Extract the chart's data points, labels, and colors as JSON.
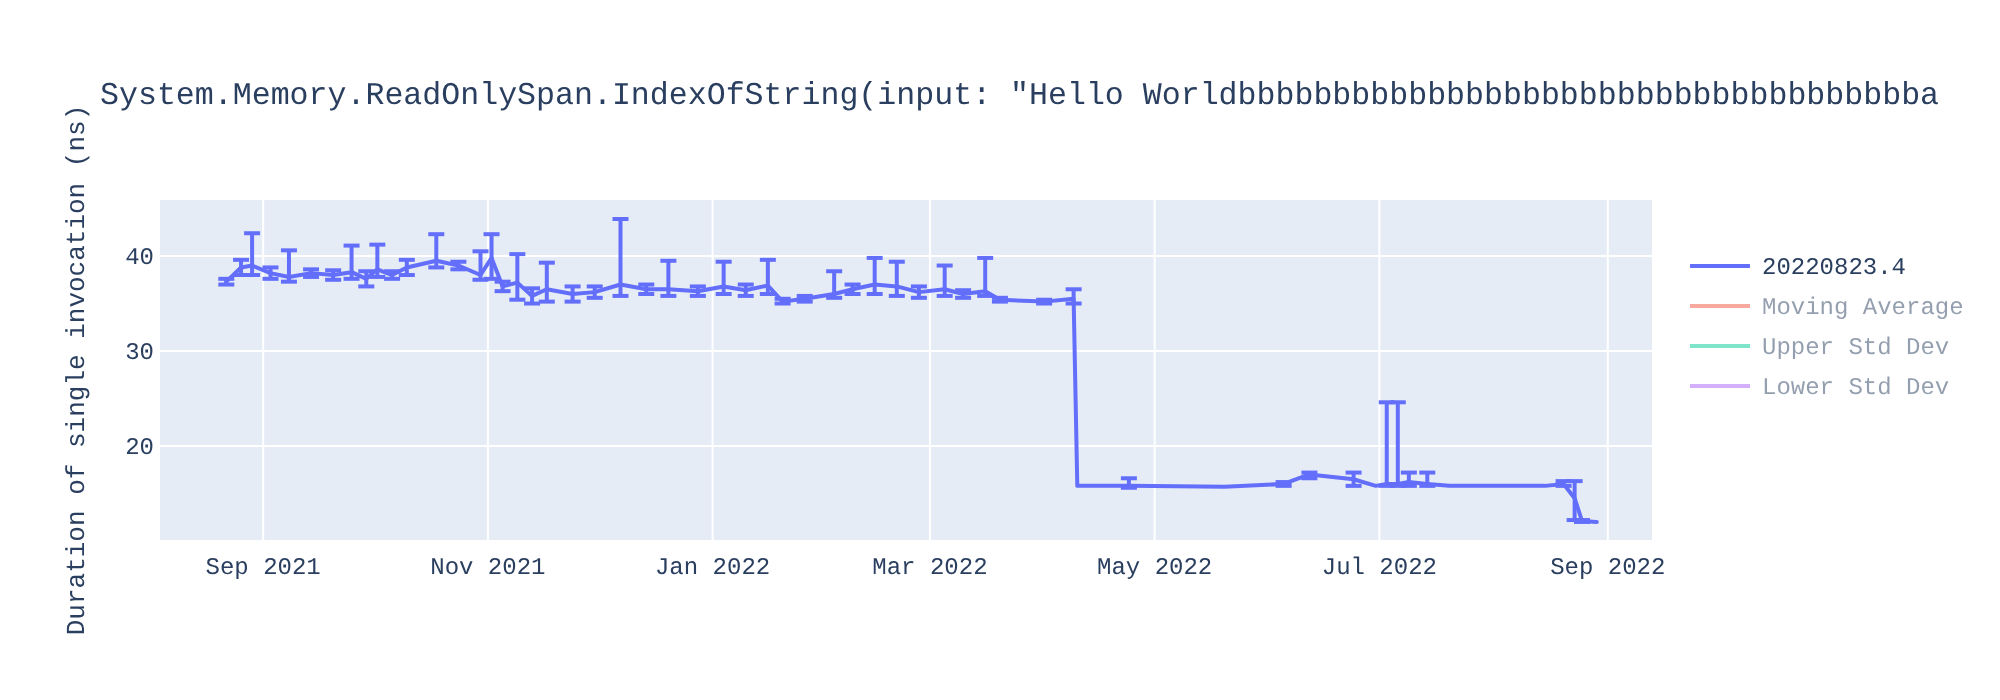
{
  "chart_data": {
    "type": "line",
    "title": "System.Memory.ReadOnlySpan.IndexOfString(input: \"Hello Worldbbbbbbbbbbbbbbbbbbbbbbbbbbbbbbbbbbbba",
    "ylabel": "Duration of single invocation (ns)",
    "x": [
      "2021-08-22",
      "2021-08-26",
      "2021-08-29",
      "2021-09-03",
      "2021-09-08",
      "2021-09-14",
      "2021-09-20",
      "2021-09-25",
      "2021-09-29",
      "2021-10-02",
      "2021-10-06",
      "2021-10-10",
      "2021-10-18",
      "2021-10-24",
      "2021-10-30",
      "2021-11-02",
      "2021-11-05",
      "2021-11-09",
      "2021-11-13",
      "2021-11-17",
      "2021-11-24",
      "2021-11-30",
      "2021-12-07",
      "2021-12-14",
      "2021-12-20",
      "2021-12-28",
      "2022-01-04",
      "2022-01-10",
      "2022-01-16",
      "2022-01-20",
      "2022-01-26",
      "2022-02-03",
      "2022-02-08",
      "2022-02-14",
      "2022-02-20",
      "2022-02-26",
      "2022-03-05",
      "2022-03-10",
      "2022-03-16",
      "2022-03-20",
      "2022-04-01",
      "2022-04-09",
      "2022-04-10",
      "2022-04-24",
      "2022-05-20",
      "2022-06-05",
      "2022-06-12",
      "2022-06-24",
      "2022-06-30",
      "2022-07-03",
      "2022-07-06",
      "2022-07-09",
      "2022-07-14",
      "2022-07-20",
      "2022-08-15",
      "2022-08-20",
      "2022-08-23",
      "2022-08-25",
      "2022-08-29"
    ],
    "series": [
      {
        "name": "20220823.4",
        "color": "#636efa",
        "values": [
          37.3,
          38.8,
          39.0,
          38.2,
          37.8,
          38.2,
          38.0,
          38.3,
          37.6,
          38.6,
          38.0,
          38.8,
          39.5,
          39.0,
          38.0,
          39.8,
          36.8,
          37.2,
          35.8,
          36.5,
          36.0,
          36.2,
          37.0,
          36.5,
          36.5,
          36.3,
          36.8,
          36.4,
          36.9,
          35.2,
          35.5,
          36.0,
          36.5,
          37.0,
          36.8,
          36.2,
          36.5,
          36.0,
          36.3,
          35.4,
          35.2,
          35.5,
          15.8,
          15.8,
          15.7,
          16.0,
          17.0,
          16.5,
          15.8,
          16.0,
          16.0,
          16.2,
          16.0,
          15.8,
          15.8,
          16.0,
          14.5,
          12.1,
          12.0
        ],
        "errors": [
          [
            37.0,
            37.6
          ],
          [
            38.0,
            39.6
          ],
          [
            38.0,
            42.4
          ],
          [
            37.6,
            38.8
          ],
          [
            37.3,
            40.6
          ],
          [
            37.8,
            38.6
          ],
          [
            37.5,
            38.5
          ],
          [
            37.6,
            41.1
          ],
          [
            36.8,
            38.4
          ],
          [
            37.8,
            41.2
          ],
          [
            37.6,
            38.4
          ],
          [
            38.0,
            39.6
          ],
          [
            38.8,
            42.3
          ],
          [
            38.6,
            39.4
          ],
          [
            37.5,
            40.5
          ],
          [
            37.6,
            42.3
          ],
          [
            36.3,
            37.3
          ],
          [
            35.4,
            40.2
          ],
          [
            35.0,
            36.6
          ],
          [
            35.2,
            39.3
          ],
          [
            35.2,
            36.8
          ],
          [
            35.6,
            36.8
          ],
          [
            35.8,
            43.9
          ],
          [
            36.0,
            37.0
          ],
          [
            35.8,
            39.5
          ],
          [
            35.8,
            36.8
          ],
          [
            36.0,
            39.4
          ],
          [
            35.8,
            37.0
          ],
          [
            36.0,
            39.6
          ],
          [
            35.0,
            35.5
          ],
          [
            35.2,
            35.8
          ],
          [
            35.6,
            38.4
          ],
          [
            36.0,
            37.0
          ],
          [
            36.0,
            39.8
          ],
          [
            35.8,
            39.4
          ],
          [
            35.6,
            36.8
          ],
          [
            35.8,
            39.0
          ],
          [
            35.6,
            36.4
          ],
          [
            35.8,
            39.8
          ],
          [
            35.2,
            35.6
          ],
          [
            35.0,
            35.4
          ],
          [
            35.0,
            36.5
          ],
          null,
          [
            15.6,
            16.6
          ],
          null,
          [
            15.8,
            16.2
          ],
          [
            16.6,
            17.2
          ],
          [
            15.8,
            17.2
          ],
          null,
          [
            15.8,
            24.6
          ],
          [
            15.8,
            24.6
          ],
          [
            15.8,
            17.2
          ],
          [
            15.8,
            17.2
          ],
          null,
          null,
          [
            15.8,
            16.3
          ],
          [
            12.2,
            16.3
          ],
          [
            12.0,
            12.2
          ],
          null
        ]
      },
      {
        "name": "Moving Average",
        "color": "#ef553b",
        "values": [
          null,
          null,
          null,
          null,
          null,
          null,
          null,
          null,
          null,
          null,
          null,
          null,
          null,
          null,
          null,
          null,
          null,
          null,
          null,
          null,
          null,
          null,
          null,
          null,
          null,
          null,
          null,
          null,
          null,
          null,
          null,
          null,
          null,
          null,
          null,
          null,
          null,
          null,
          null,
          null,
          null,
          null,
          null,
          null,
          null,
          null,
          null,
          null,
          null,
          null,
          null,
          null,
          null,
          null,
          null,
          null,
          null,
          null,
          null
        ]
      },
      {
        "name": "Upper Std Dev",
        "color": "#00cc96",
        "values": [
          null,
          null,
          null,
          null,
          null,
          null,
          null,
          null,
          null,
          null,
          null,
          null,
          null,
          null,
          null,
          null,
          null,
          null,
          null,
          null,
          null,
          null,
          null,
          null,
          null,
          null,
          null,
          null,
          null,
          null,
          null,
          null,
          null,
          null,
          null,
          null,
          null,
          null,
          null,
          null,
          null,
          null,
          null,
          null,
          null,
          null,
          null,
          null,
          null,
          null,
          null,
          null,
          null,
          null,
          null,
          null,
          null,
          null,
          null
        ]
      },
      {
        "name": "Lower Std Dev",
        "color": "#ab63fa",
        "values": [
          null,
          null,
          null,
          null,
          null,
          null,
          null,
          null,
          null,
          null,
          null,
          null,
          null,
          null,
          null,
          null,
          null,
          null,
          null,
          null,
          null,
          null,
          null,
          null,
          null,
          null,
          null,
          null,
          null,
          null,
          null,
          null,
          null,
          null,
          null,
          null,
          null,
          null,
          null,
          null,
          null,
          null,
          null,
          null,
          null,
          null,
          null,
          null,
          null,
          null,
          null,
          null,
          null,
          null,
          null,
          null,
          null,
          null,
          null
        ]
      }
    ],
    "xlim": [
      "2021-08-04",
      "2022-09-13"
    ],
    "xticks": [
      {
        "value": "2021-09-01",
        "label": "Sep 2021"
      },
      {
        "value": "2021-11-01",
        "label": "Nov 2021"
      },
      {
        "value": "2022-01-01",
        "label": "Jan 2022"
      },
      {
        "value": "2022-03-01",
        "label": "Mar 2022"
      },
      {
        "value": "2022-05-01",
        "label": "May 2022"
      },
      {
        "value": "2022-07-01",
        "label": "Jul 2022"
      },
      {
        "value": "2022-09-01",
        "label": "Sep 2022"
      }
    ],
    "ylim": [
      10.1,
      45.9
    ],
    "yticks": [
      20,
      30,
      40
    ],
    "grid": true,
    "legend": "right",
    "marker": "none",
    "line_style": "solid"
  }
}
